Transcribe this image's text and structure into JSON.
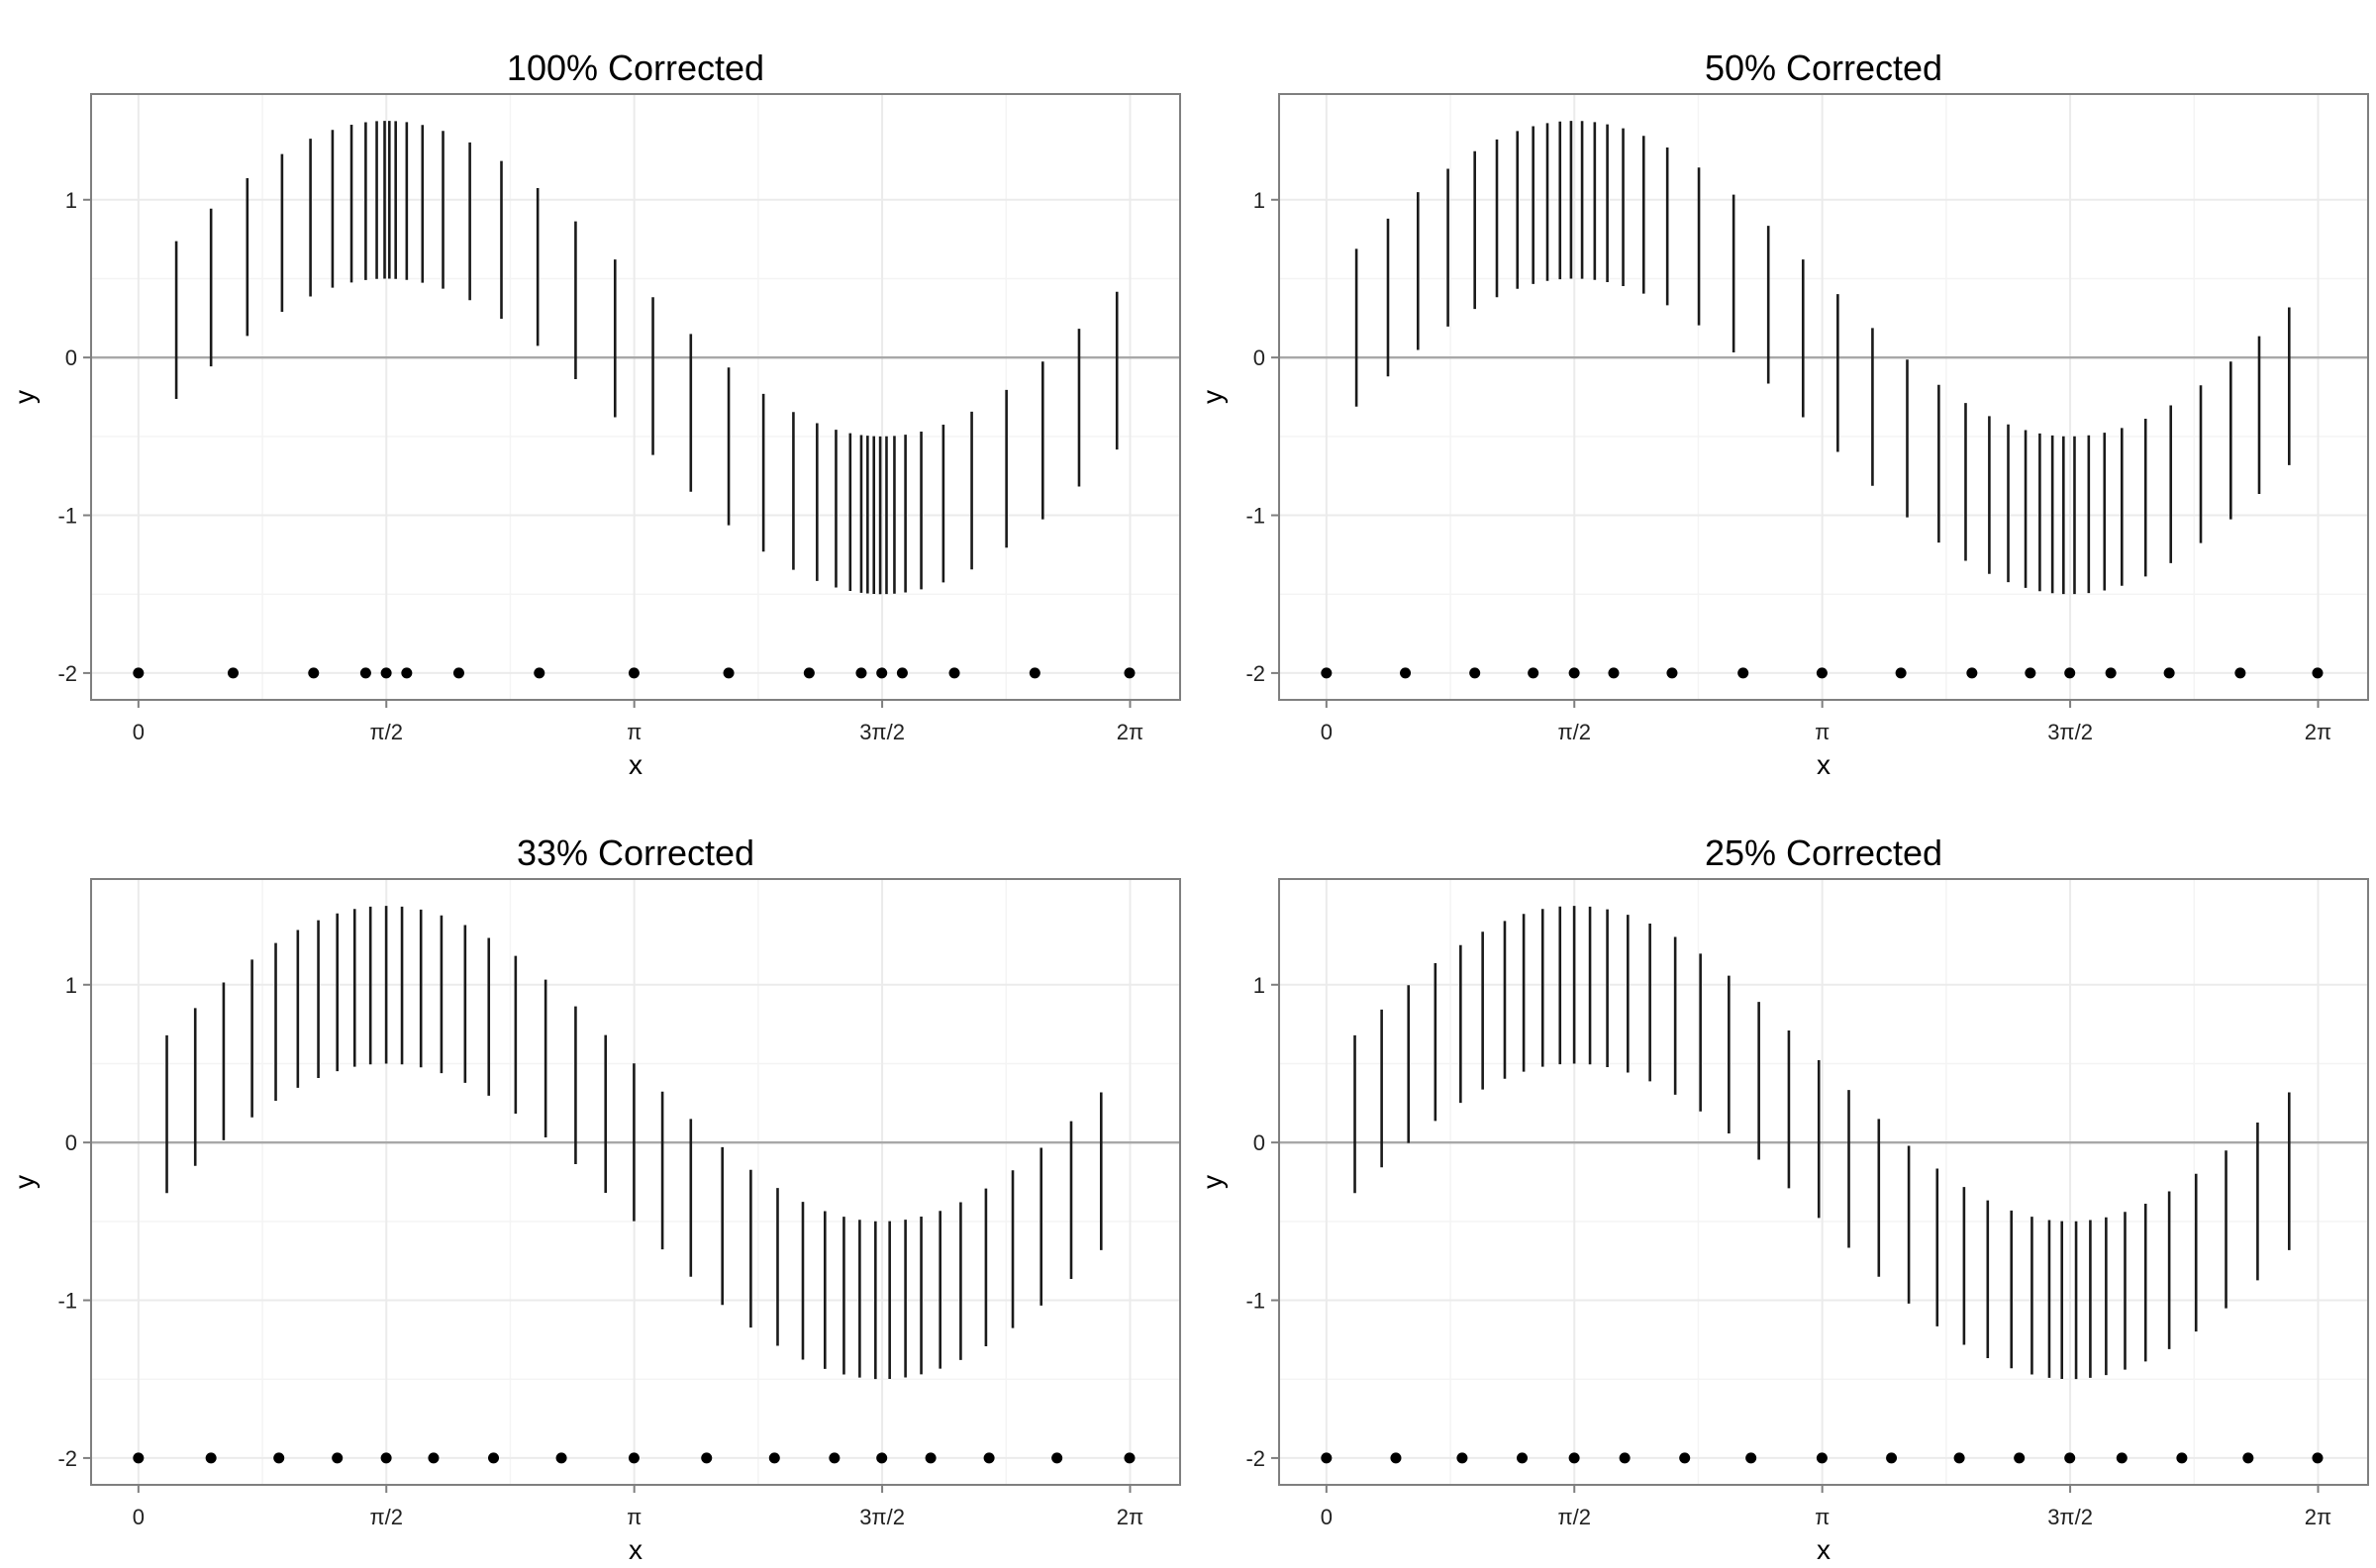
{
  "chart_data": [
    {
      "type": "scatter",
      "title": "100% Corrected",
      "xlabel": "x",
      "ylabel": "y",
      "xlim": [
        -0.3,
        6.6
      ],
      "ylim": [
        -2.17,
        1.67
      ],
      "x_ticks": [
        0,
        1.5708,
        3.1416,
        4.7124,
        6.2832
      ],
      "x_tick_labels": [
        "0",
        "π/2",
        "π",
        "3π/2",
        "2π"
      ],
      "y_ticks": [
        -2,
        -1,
        0,
        1
      ],
      "y_tick_labels": [
        "-2",
        "-1",
        "0",
        "1"
      ],
      "grid": true,
      "hline": 0,
      "rug_y": -2,
      "point_x": [
        0,
        0.6,
        1.11,
        1.44,
        1.57,
        1.7,
        2.03,
        2.54,
        3.14,
        3.74,
        4.25,
        4.58,
        4.71,
        4.84,
        5.17,
        5.68,
        6.28
      ],
      "segment_x": [
        0.24,
        0.46,
        0.69,
        0.91,
        1.09,
        1.23,
        1.35,
        1.44,
        1.51,
        1.56,
        1.59,
        1.63,
        1.7,
        1.8,
        1.93,
        2.1,
        2.3,
        2.53,
        2.77,
        3.02,
        3.26,
        3.5,
        3.74,
        3.96,
        4.15,
        4.3,
        4.42,
        4.51,
        4.58,
        4.62,
        4.66,
        4.7,
        4.74,
        4.79,
        4.86,
        4.96,
        5.1,
        5.28,
        5.5,
        5.73,
        5.96,
        6.2
      ],
      "segment_halfwidth": 0.5
    },
    {
      "type": "scatter",
      "title": "50% Corrected",
      "xlabel": "x",
      "ylabel": "y",
      "xlim": [
        -0.3,
        6.6
      ],
      "ylim": [
        -2.17,
        1.67
      ],
      "x_ticks": [
        0,
        1.5708,
        3.1416,
        4.7124,
        6.2832
      ],
      "x_tick_labels": [
        "0",
        "π/2",
        "π",
        "3π/2",
        "2π"
      ],
      "y_ticks": [
        -2,
        -1,
        0,
        1
      ],
      "y_tick_labels": [
        "-2",
        "-1",
        "0",
        "1"
      ],
      "grid": true,
      "hline": 0,
      "rug_y": -2,
      "point_x": [
        0,
        0.5,
        0.94,
        1.31,
        1.57,
        1.82,
        2.19,
        2.64,
        3.14,
        3.64,
        4.09,
        4.46,
        4.71,
        4.97,
        5.34,
        5.79,
        6.28
      ],
      "segment_x": [
        0.19,
        0.39,
        0.58,
        0.77,
        0.94,
        1.08,
        1.21,
        1.31,
        1.4,
        1.48,
        1.55,
        1.62,
        1.7,
        1.78,
        1.88,
        2.01,
        2.16,
        2.36,
        2.58,
        2.8,
        3.02,
        3.24,
        3.46,
        3.68,
        3.88,
        4.05,
        4.2,
        4.32,
        4.43,
        4.52,
        4.6,
        4.67,
        4.74,
        4.83,
        4.93,
        5.04,
        5.19,
        5.35,
        5.54,
        5.73,
        5.91,
        6.1
      ],
      "segment_halfwidth": 0.5
    },
    {
      "type": "scatter",
      "title": "33% Corrected",
      "xlabel": "x",
      "ylabel": "y",
      "xlim": [
        -0.3,
        6.6
      ],
      "ylim": [
        -2.17,
        1.67
      ],
      "x_ticks": [
        0,
        1.5708,
        3.1416,
        4.7124,
        6.2832
      ],
      "x_tick_labels": [
        "0",
        "π/2",
        "π",
        "3π/2",
        "2π"
      ],
      "y_ticks": [
        -2,
        -1,
        0,
        1
      ],
      "y_tick_labels": [
        "-2",
        "-1",
        "0",
        "1"
      ],
      "grid": true,
      "hline": 0,
      "rug_y": -2,
      "point_x": [
        0,
        0.46,
        0.89,
        1.26,
        1.57,
        1.87,
        2.25,
        2.68,
        3.14,
        3.6,
        4.03,
        4.41,
        4.71,
        5.02,
        5.39,
        5.82,
        6.28
      ],
      "segment_x": [
        0.18,
        0.36,
        0.54,
        0.72,
        0.87,
        1.01,
        1.14,
        1.26,
        1.37,
        1.47,
        1.57,
        1.67,
        1.79,
        1.92,
        2.07,
        2.22,
        2.39,
        2.58,
        2.77,
        2.96,
        3.14,
        3.32,
        3.5,
        3.7,
        3.88,
        4.05,
        4.21,
        4.35,
        4.47,
        4.57,
        4.67,
        4.76,
        4.86,
        4.96,
        5.08,
        5.21,
        5.37,
        5.54,
        5.72,
        5.91,
        6.1
      ],
      "segment_halfwidth": 0.5
    },
    {
      "type": "scatter",
      "title": "25% Corrected",
      "xlabel": "x",
      "ylabel": "y",
      "xlim": [
        -0.3,
        6.6
      ],
      "ylim": [
        -2.17,
        1.67
      ],
      "x_ticks": [
        0,
        1.5708,
        3.1416,
        4.7124,
        6.2832
      ],
      "x_tick_labels": [
        "0",
        "π/2",
        "π",
        "3π/2",
        "2π"
      ],
      "y_ticks": [
        -2,
        -1,
        0,
        1
      ],
      "y_tick_labels": [
        "-2",
        "-1",
        "0",
        "1"
      ],
      "grid": true,
      "hline": 0,
      "rug_y": -2,
      "point_x": [
        0,
        0.44,
        0.86,
        1.24,
        1.57,
        1.89,
        2.27,
        2.69,
        3.14,
        3.58,
        4.01,
        4.39,
        4.71,
        5.04,
        5.42,
        5.84,
        6.28
      ],
      "segment_x": [
        0.18,
        0.35,
        0.52,
        0.69,
        0.85,
        0.99,
        1.13,
        1.25,
        1.37,
        1.48,
        1.57,
        1.67,
        1.78,
        1.91,
        2.05,
        2.21,
        2.37,
        2.55,
        2.74,
        2.93,
        3.12,
        3.31,
        3.5,
        3.69,
        3.87,
        4.04,
        4.19,
        4.34,
        4.47,
        4.58,
        4.66,
        4.75,
        4.84,
        4.94,
        5.06,
        5.19,
        5.34,
        5.51,
        5.7,
        5.9,
        6.1
      ],
      "segment_halfwidth": 0.5
    }
  ]
}
